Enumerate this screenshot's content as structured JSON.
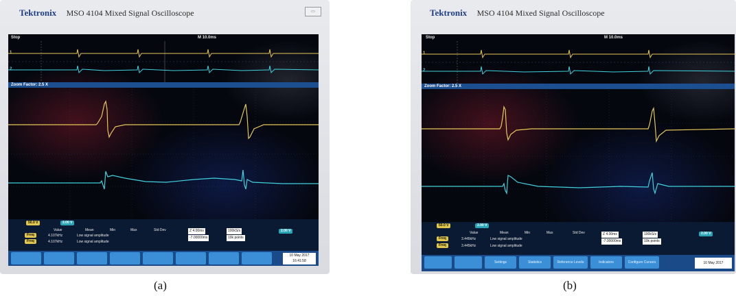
{
  "panel_a": {
    "brand": "Tektronix",
    "model": "MSO 4104  Mixed Signal Oscilloscope",
    "status": "Stop",
    "horizontal": "M 10.0ms",
    "zoom_factor": "Zoom Factor: 2.5 X",
    "ch1_scale": "50.0 V",
    "ch2_scale": "2.00 V",
    "meas_headers": [
      "Value",
      "Mean",
      "Min",
      "Max",
      "Std Dev"
    ],
    "meas_rows": [
      {
        "label": "Freq",
        "value": "4.107kHz",
        "note": "Low signal amplitude"
      },
      {
        "label": "Freq",
        "value": "4.107kHz",
        "note": "Low signal amplitude"
      }
    ],
    "zoom_time": "Z 4.00ms",
    "zoom_pos": "-7.00000ms",
    "sample_rate": "100kS/s",
    "points": "10k points",
    "trigger_level": "2.00 V",
    "date": "10 May 2017",
    "time": "16:41:58",
    "caption": "(a)"
  },
  "panel_b": {
    "brand": "Tektronix",
    "model": "MSO 4104  Mixed Signal Oscilloscope",
    "status": "Stop",
    "horizontal": "M 10.0ms",
    "zoom_factor": "Zoom Factor: 2.5 X",
    "ch1_scale": "50.0 V",
    "ch2_scale": "2.00 V",
    "meas_headers": [
      "Value",
      "Mean",
      "Min",
      "Max",
      "Std Dev"
    ],
    "meas_rows": [
      {
        "label": "Freq",
        "value": "3.445kHz",
        "note": "Low signal amplitude"
      },
      {
        "label": "Freq",
        "value": "3.445kHz",
        "note": "Low signal amplitude"
      }
    ],
    "zoom_time": "Z 4.00ms",
    "zoom_pos": "-7.00000ms",
    "sample_rate": "100kS/s",
    "points": "10k points",
    "trigger_level": "2.00 V",
    "date": "10 May 2017",
    "menu": [
      "Settings",
      "Statistics",
      "Reference Levels",
      "Indicators",
      "Configure Cursors"
    ],
    "caption": "(b)"
  },
  "colors": {
    "ch1": "#e7c85a",
    "ch2": "#3fd3df",
    "screen": "#05070f",
    "menu": "#3b8fd6",
    "brand": "#1f3f86"
  }
}
